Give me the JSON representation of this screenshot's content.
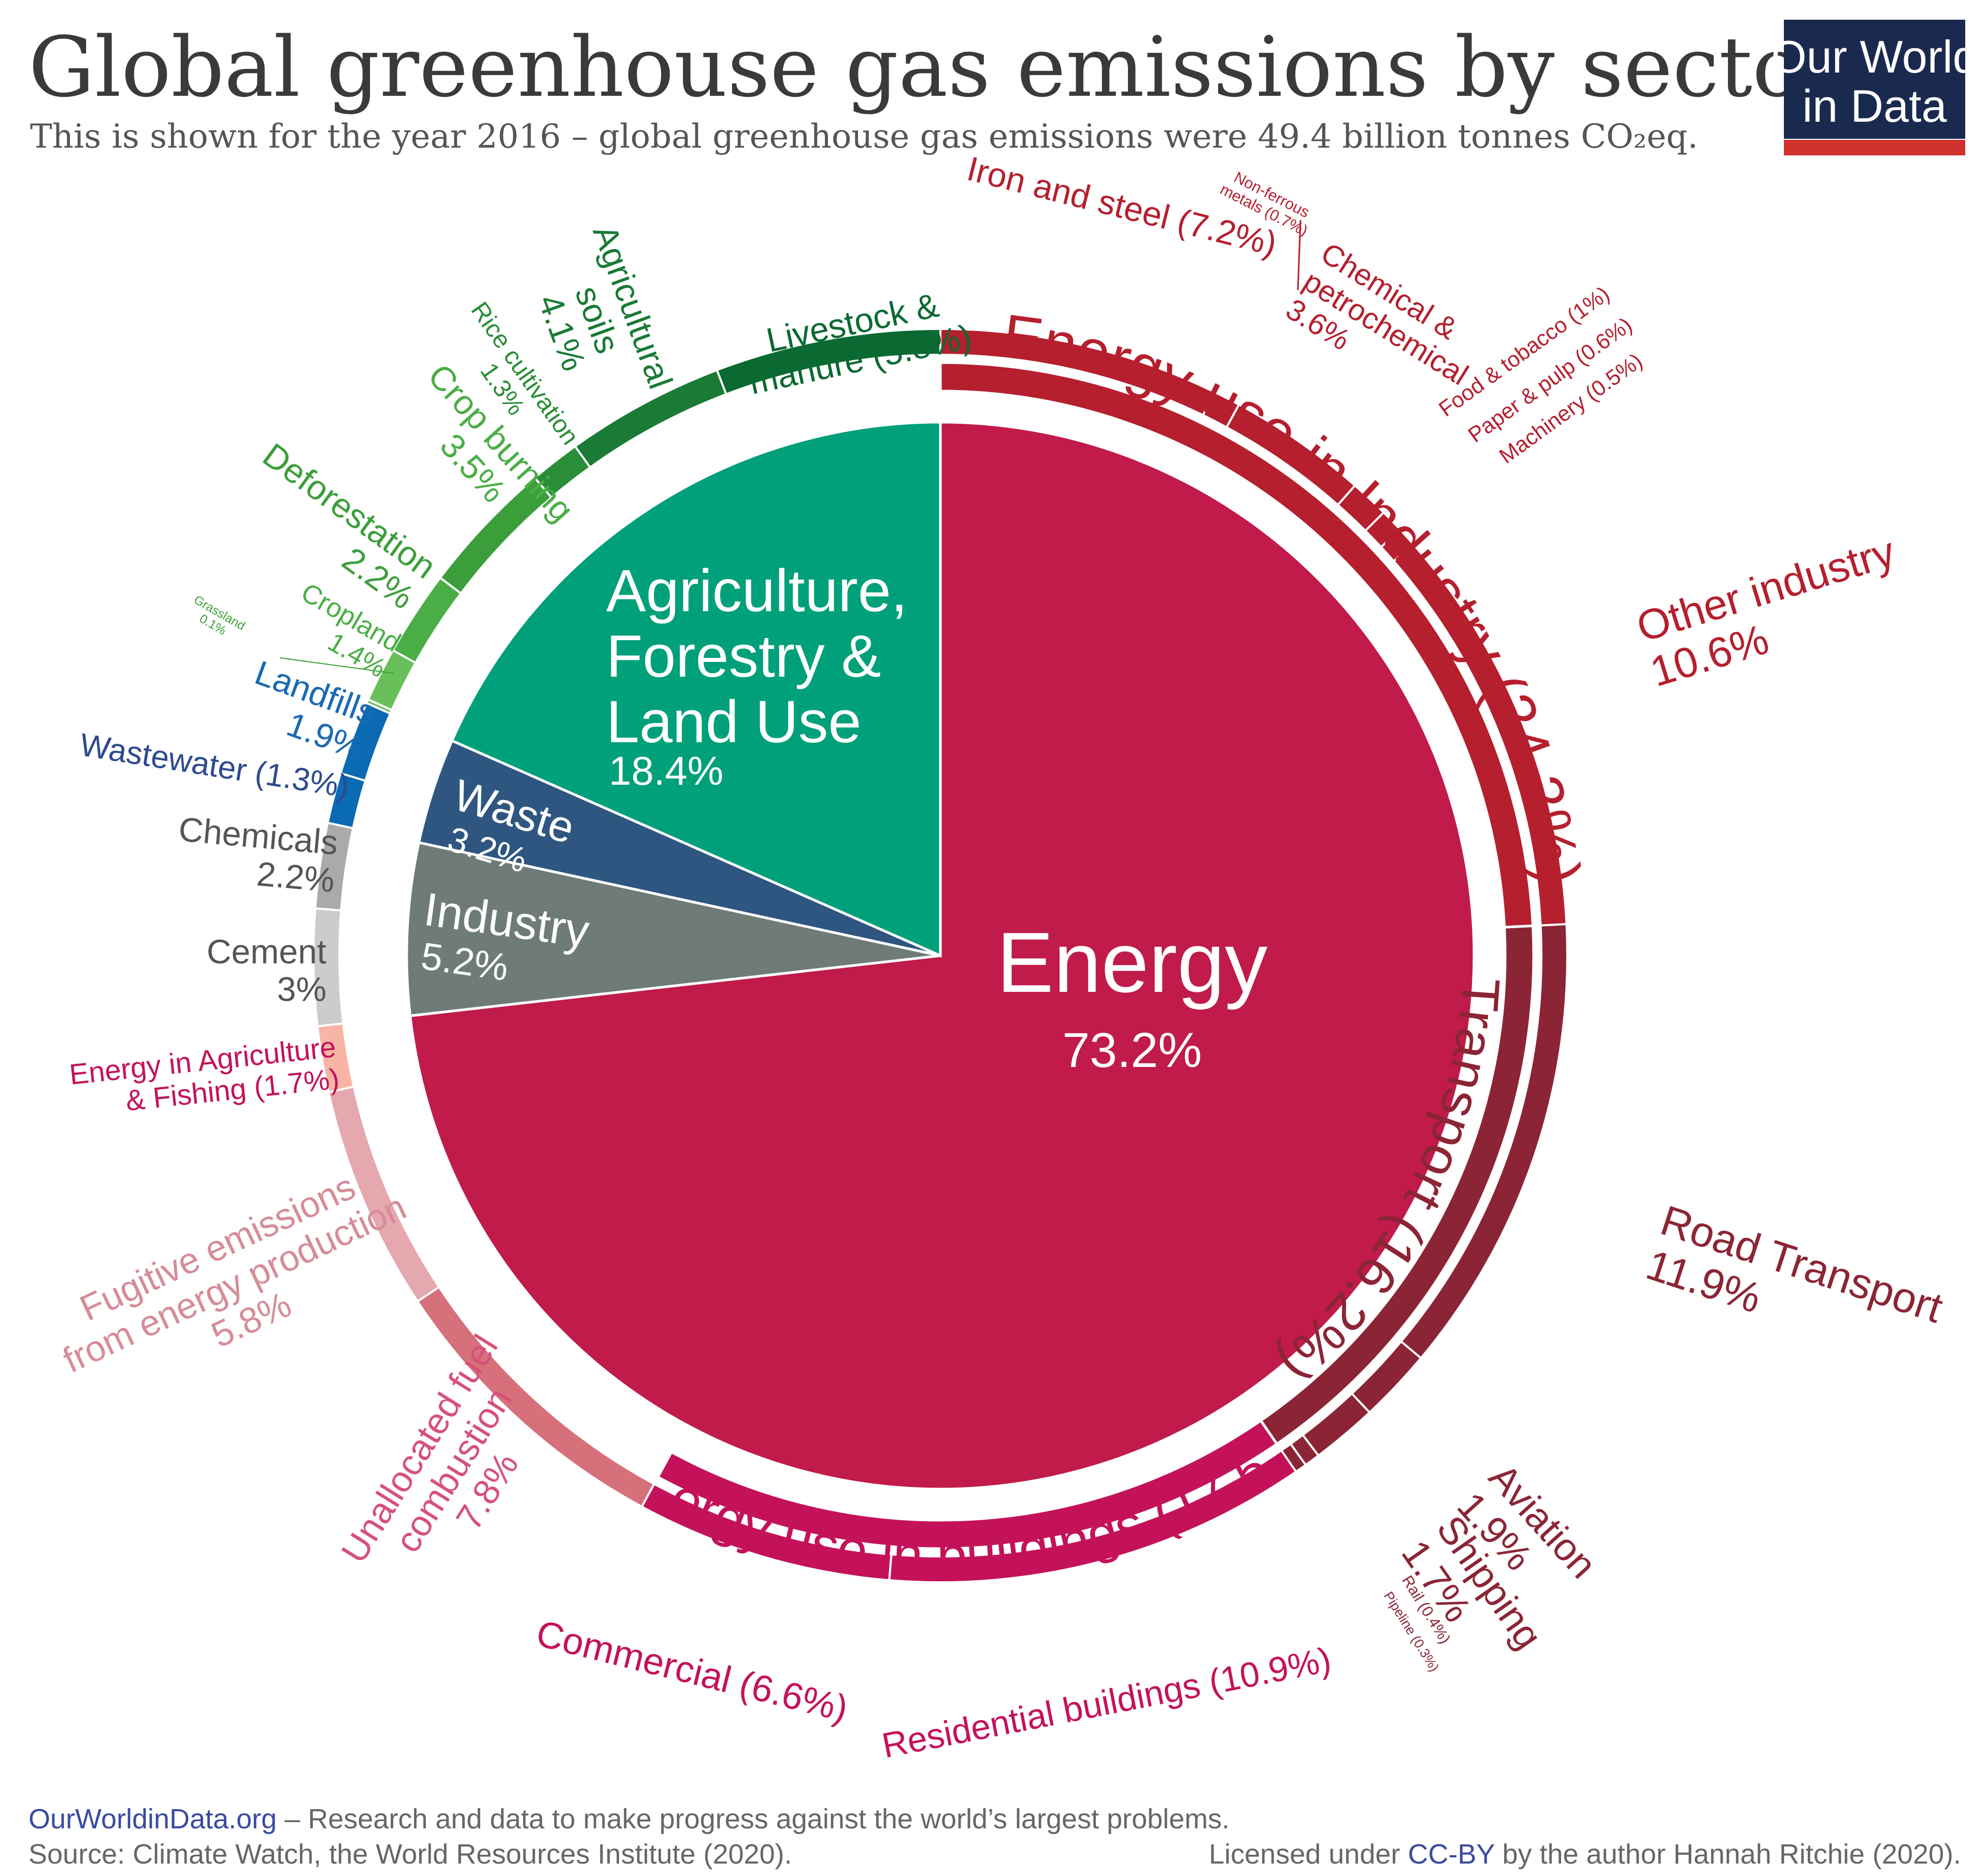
{
  "header": {
    "title": "Global greenhouse gas emissions by sector",
    "subtitle": "This is shown for the year 2016 – global greenhouse gas emissions were 49.4 billion tonnes CO₂eq."
  },
  "logo": {
    "line1": "Our World",
    "line2": "in Data",
    "bg_color": "#1a2a4f",
    "bar_color": "#d0312d"
  },
  "footer": {
    "site": "OurWorldinData.org",
    "tagline": " – Research and data to make progress against the world’s largest problems.",
    "source": "Source: Climate Watch, the World Resources Institute (2020).",
    "license_prefix": "Licensed under ",
    "license_link": "CC-BY",
    "license_suffix": " by the author Hannah Ritchie  (2020)."
  },
  "chart_data": {
    "type": "pie",
    "total": "49.4 billion tonnes CO₂eq",
    "year": "2016",
    "inner": [
      {
        "name": "Energy",
        "value": 73.2,
        "label": "Energy",
        "pct": "73.2%",
        "color": "#c01b4a"
      },
      {
        "name": "Industry",
        "value": 5.2,
        "label": "Industry",
        "pct": "5.2%",
        "color": "#6e7b77"
      },
      {
        "name": "Waste",
        "value": 3.2,
        "label": "Waste",
        "pct": "3.2%",
        "color": "#2e5681"
      },
      {
        "name": "Agriculture, Forestry & Land Use",
        "value": 18.4,
        "label": "Agriculture, Forestry & Land Use",
        "pct": "18.4%",
        "color": "#00a07a"
      }
    ],
    "middle": [
      {
        "name": "Energy use in Industry",
        "value": 24.2,
        "label": "Energy use in Industry (24.2%)",
        "color": "#b51f2e"
      },
      {
        "name": "Transport",
        "value": 16.2,
        "label": "Transport (16.2%)",
        "color": "#8b2535"
      },
      {
        "name": "Energy use in buildings",
        "value": 17.5,
        "label": "Energy use in buildings (17.5%)",
        "color": "#c4125a"
      }
    ],
    "outer": [
      {
        "name": "Iron and steel",
        "value": 7.2,
        "color": "#b51f2e",
        "label": "Iron and steel (7.2%)"
      },
      {
        "name": "Non-ferrous metals",
        "value": 0.7,
        "color": "#b51f2e",
        "label": "Non-ferrous metals (0.7%)"
      },
      {
        "name": "Chemical & petrochemical",
        "value": 3.6,
        "color": "#b51f2e",
        "label": "Chemical & petrochemical 3.6%"
      },
      {
        "name": "Food & tobacco",
        "value": 1.0,
        "color": "#b51f2e",
        "label": "Food & tobacco (1%)"
      },
      {
        "name": "Paper & pulp",
        "value": 0.6,
        "color": "#b51f2e",
        "label": "Paper & pulp (0.6%)"
      },
      {
        "name": "Machinery",
        "value": 0.5,
        "color": "#b51f2e",
        "label": "Machinery (0.5%)"
      },
      {
        "name": "Other industry",
        "value": 10.6,
        "color": "#b51f2e",
        "label": "Other industry 10.6%"
      },
      {
        "name": "Road Transport",
        "value": 11.9,
        "color": "#8b2535",
        "label": "Road Transport 11.9%"
      },
      {
        "name": "Aviation",
        "value": 1.9,
        "color": "#8b2535",
        "label": "Aviation 1.9%"
      },
      {
        "name": "Shipping",
        "value": 1.7,
        "color": "#8b2535",
        "label": "Shipping 1.7%"
      },
      {
        "name": "Rail",
        "value": 0.4,
        "color": "#8b2535",
        "label": "Rail (0.4%)"
      },
      {
        "name": "Pipeline",
        "value": 0.3,
        "color": "#8b2535",
        "label": "Pipeline (0.3%)"
      },
      {
        "name": "Residential buildings",
        "value": 10.9,
        "color": "#c4125a",
        "label": "Residential buildings (10.9%)"
      },
      {
        "name": "Commercial",
        "value": 6.6,
        "color": "#c4125a",
        "label": "Commercial (6.6%)"
      },
      {
        "name": "Unallocated fuel combustion",
        "value": 7.8,
        "color": "#d6707a",
        "label": "Unallocated fuel combustion 7.8%"
      },
      {
        "name": "Fugitive emissions from energy production",
        "value": 5.8,
        "color": "#e4a8ae",
        "label": "Fugitive emissions from energy production 5.8%"
      },
      {
        "name": "Energy in Agriculture & Fishing",
        "value": 1.7,
        "color": "#f8b5a6",
        "label": "Energy in Agriculture & Fishing (1.7%)"
      },
      {
        "name": "Cement",
        "value": 3.0,
        "color": "#cccccc",
        "label": "Cement 3%"
      },
      {
        "name": "Chemicals",
        "value": 2.2,
        "color": "#aaaaaa",
        "label": "Chemicals 2.2%"
      },
      {
        "name": "Wastewater",
        "value": 1.3,
        "color": "#0a6ab2",
        "label": "Wastewater (1.3%)"
      },
      {
        "name": "Landfills",
        "value": 1.9,
        "color": "#0a6ab2",
        "label": "Landfills 1.9%"
      },
      {
        "name": "Grassland",
        "value": 0.1,
        "color": "#69c05a",
        "label": "Grassland 0.1%"
      },
      {
        "name": "Cropland",
        "value": 1.4,
        "color": "#69c05a",
        "label": "Cropland 1.4%"
      },
      {
        "name": "Deforestation",
        "value": 2.2,
        "color": "#4aae46",
        "label": "Deforestation 2.2%"
      },
      {
        "name": "Crop burning",
        "value": 3.5,
        "color": "#3b9e3b",
        "label": "Crop burning 3.5%"
      },
      {
        "name": "Rice cultivation",
        "value": 1.3,
        "color": "#2a8d37",
        "label": "Rice cultivation 1.3%"
      },
      {
        "name": "Agricultural soils",
        "value": 4.1,
        "color": "#1a7a36",
        "label": "Agricultural soils 4.1%"
      },
      {
        "name": "Livestock & manure",
        "value": 5.8,
        "color": "#0a6a32",
        "label": "Livestock & manure (5.8%)"
      }
    ]
  }
}
